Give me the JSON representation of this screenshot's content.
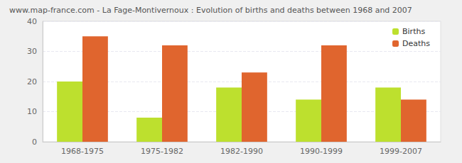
{
  "chart_data": {
    "type": "bar",
    "title": "www.map-france.com - La Fage-Montivernoux : Evolution of births and deaths between 1968 and 2007",
    "categories": [
      "1968-1975",
      "1975-1982",
      "1982-1990",
      "1990-1999",
      "1999-2007"
    ],
    "series": [
      {
        "name": "Births",
        "color": "#bde02e",
        "values": [
          20,
          8,
          18,
          14,
          18
        ]
      },
      {
        "name": "Deaths",
        "color": "#e0652e",
        "values": [
          35,
          32,
          23,
          32,
          14
        ]
      }
    ],
    "ylim": [
      0,
      40
    ],
    "yticks": [
      0,
      10,
      20,
      30,
      40
    ],
    "grid": true,
    "legend": "upper right"
  }
}
